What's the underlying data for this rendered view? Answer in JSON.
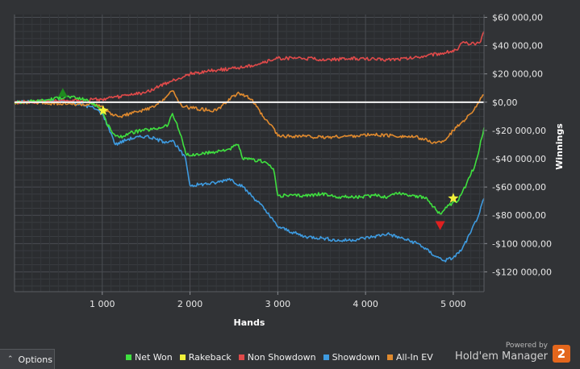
{
  "chart_data": {
    "type": "line",
    "xlabel": "Hands",
    "ylabel": "Winnings",
    "xlim": [
      0,
      5350
    ],
    "ylim": [
      -134000,
      62000
    ],
    "x_ticks": [
      1000,
      2000,
      3000,
      4000,
      5000
    ],
    "x_tick_labels": [
      "1 000",
      "2 000",
      "3 000",
      "4 000",
      "5 000"
    ],
    "y_ticks": [
      60000,
      40000,
      20000,
      0,
      -20000,
      -40000,
      -60000,
      -80000,
      -100000,
      -120000
    ],
    "y_tick_labels": [
      "$60 000,00",
      "$40 000,00",
      "$20 000,00",
      "$0,00",
      "-$20 000,00",
      "-$40 000,00",
      "-$60 000,00",
      "-$80 000,00",
      "-$100 000,00",
      "-$120 000,00"
    ],
    "grid": true,
    "legend_position": "bottom",
    "series": [
      {
        "name": "Net Won",
        "color": "#3fe03f",
        "x": [
          0,
          300,
          600,
          800,
          950,
          1000,
          1050,
          1150,
          1200,
          1300,
          1450,
          1600,
          1750,
          1800,
          1900,
          1950,
          2000,
          2300,
          2450,
          2550,
          2600,
          2850,
          2950,
          3000,
          3300,
          3500,
          3700,
          3950,
          4100,
          4250,
          4350,
          4550,
          4700,
          4800,
          4850,
          4950,
          5050,
          5150,
          5250,
          5300,
          5350
        ],
        "y": [
          0,
          1000,
          4000,
          2000,
          -3000,
          -6000,
          -15000,
          -24000,
          -25000,
          -22000,
          -20000,
          -19000,
          -16000,
          -8000,
          -24000,
          -36000,
          -38000,
          -35000,
          -33000,
          -30000,
          -40000,
          -42000,
          -47000,
          -66000,
          -66000,
          -65000,
          -67000,
          -67000,
          -66000,
          -67000,
          -64000,
          -66000,
          -68000,
          -76000,
          -79000,
          -73000,
          -70000,
          -58000,
          -44000,
          -32000,
          -18000
        ]
      },
      {
        "name": "Rakeback",
        "color": "#f1f13a",
        "x": [
          0,
          5350
        ],
        "y": [
          0,
          0
        ]
      },
      {
        "name": "Non Showdown",
        "color": "#e04a4a",
        "x": [
          0,
          500,
          1000,
          1200,
          1500,
          1600,
          1800,
          2000,
          2200,
          2500,
          2700,
          2950,
          3000,
          3300,
          3600,
          3900,
          4200,
          4500,
          4700,
          4900,
          5050,
          5100,
          5200,
          5300,
          5350
        ],
        "y": [
          0,
          1000,
          2000,
          4000,
          7000,
          10000,
          15000,
          20000,
          22000,
          24000,
          26000,
          30000,
          31000,
          31000,
          30000,
          31000,
          30000,
          31000,
          33000,
          35000,
          37000,
          42000,
          41000,
          42000,
          50000
        ]
      },
      {
        "name": "Showdown",
        "color": "#3e9be0",
        "x": [
          0,
          600,
          900,
          1000,
          1100,
          1150,
          1300,
          1500,
          1700,
          1800,
          1950,
          2000,
          2300,
          2450,
          2600,
          2800,
          3000,
          3300,
          3500,
          3700,
          3900,
          4100,
          4250,
          4400,
          4600,
          4800,
          4900,
          5000,
          5100,
          5200,
          5300,
          5350
        ],
        "y": [
          0,
          1000,
          -4000,
          -8000,
          -22000,
          -30000,
          -26000,
          -24000,
          -28000,
          -27000,
          -40000,
          -59000,
          -57000,
          -54000,
          -60000,
          -72000,
          -88000,
          -95000,
          -96000,
          -98000,
          -97000,
          -95000,
          -93000,
          -96000,
          -100000,
          -109000,
          -112000,
          -110000,
          -104000,
          -92000,
          -78000,
          -68000
        ]
      },
      {
        "name": "All-In EV",
        "color": "#e08a2e",
        "x": [
          0,
          500,
          900,
          1000,
          1100,
          1200,
          1400,
          1600,
          1800,
          1900,
          2000,
          2300,
          2550,
          2700,
          2850,
          2950,
          3000,
          3300,
          3500,
          3800,
          4100,
          4400,
          4600,
          4800,
          4900,
          5000,
          5100,
          5200,
          5300,
          5350
        ],
        "y": [
          0,
          -1000,
          -2000,
          -3000,
          -9000,
          -10000,
          -7000,
          -3000,
          8000,
          -2000,
          -4000,
          -6000,
          7000,
          2000,
          -12000,
          -18000,
          -24000,
          -24000,
          -25000,
          -24000,
          -23000,
          -24000,
          -25000,
          -29000,
          -27000,
          -20000,
          -14000,
          -8000,
          1000,
          5000
        ]
      }
    ],
    "markers": [
      {
        "kind": "triangle-up",
        "color": "#1f8a1f",
        "x": 550,
        "y": 6000
      },
      {
        "kind": "star",
        "color": "#f1f13a",
        "x": 1010,
        "y": -6000
      },
      {
        "kind": "star",
        "color": "#f1f13a",
        "x": 5000,
        "y": -68000
      },
      {
        "kind": "triangle-down",
        "color": "#e02020",
        "x": 4850,
        "y": -87000
      }
    ]
  },
  "footer": {
    "options_label": "Options",
    "legend": [
      {
        "label": "Net Won",
        "color": "#3fe03f"
      },
      {
        "label": "Rakeback",
        "color": "#f1f13a"
      },
      {
        "label": "Non Showdown",
        "color": "#e04a4a"
      },
      {
        "label": "Showdown",
        "color": "#3e9be0"
      },
      {
        "label": "All-In EV",
        "color": "#e08a2e"
      }
    ],
    "powered_by": "Powered by",
    "brand_name": "Hold'em Manager",
    "brand_badge": "2"
  }
}
